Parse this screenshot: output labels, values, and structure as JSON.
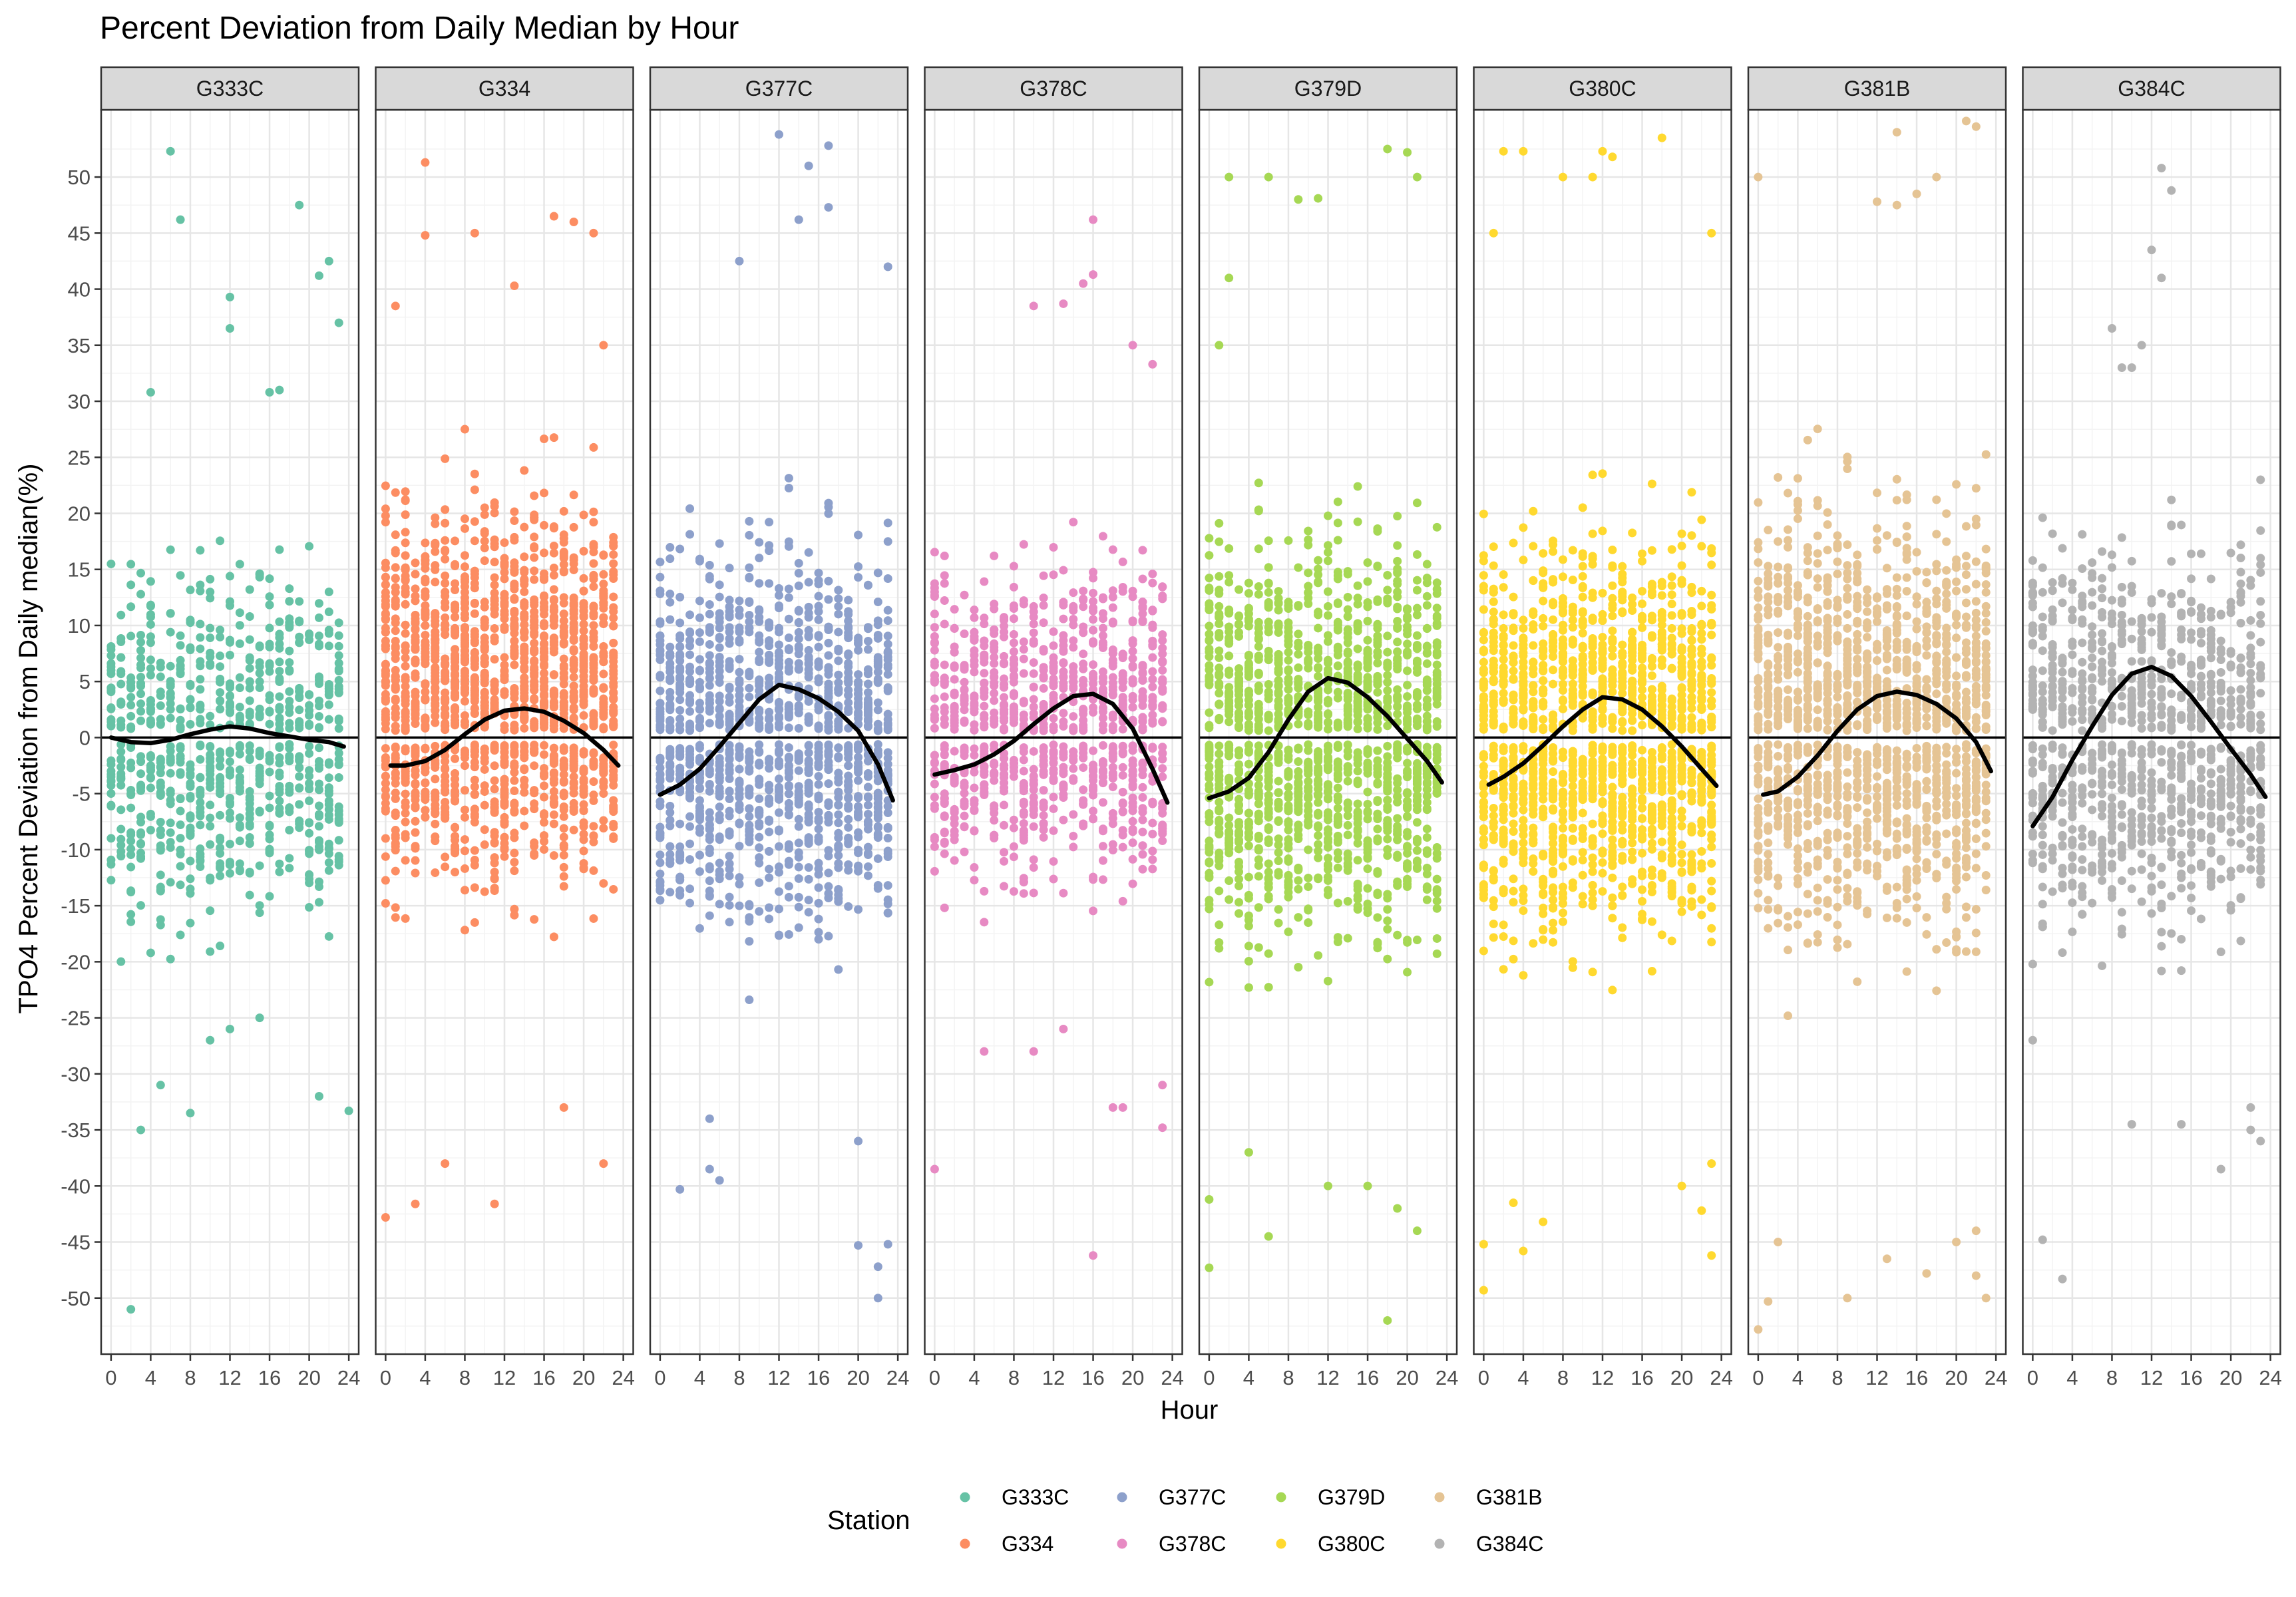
{
  "chart_data": {
    "type": "scatter",
    "title": "Percent Deviation from Daily Median by Hour",
    "xlabel": "Hour",
    "ylabel": "TPO4 Percent Deviation from Daily median(%)",
    "xlim": [
      -1,
      25
    ],
    "ylim": [
      -55,
      56
    ],
    "x_ticks": [
      0,
      4,
      8,
      12,
      16,
      20,
      24
    ],
    "y_ticks": [
      -50,
      -45,
      -40,
      -35,
      -30,
      -25,
      -20,
      -15,
      -10,
      -5,
      0,
      5,
      10,
      15,
      20,
      25,
      30,
      35,
      40,
      45,
      50
    ],
    "grid": true,
    "reference_line": 0,
    "legend": {
      "title": "Station",
      "position": "bottom",
      "entries": [
        "G333C",
        "G334",
        "G377C",
        "G378C",
        "G379D",
        "G380C",
        "G381B",
        "G384C"
      ]
    },
    "facets": [
      {
        "label": "G333C",
        "color": "#66C2A5",
        "pt_ymin": -27,
        "pt_ymax": 25,
        "density": 0.5,
        "outliers": [
          [
            6,
            52.3
          ],
          [
            7,
            46.2
          ],
          [
            12,
            39.3
          ],
          [
            19,
            47.5
          ],
          [
            21,
            41.2
          ],
          [
            22,
            42.5
          ],
          [
            23,
            37
          ],
          [
            3,
            -35
          ],
          [
            2,
            -51
          ],
          [
            4,
            30.8
          ],
          [
            12,
            36.5
          ],
          [
            16,
            30.8
          ],
          [
            17,
            31
          ],
          [
            10,
            -27
          ],
          [
            8,
            -33.5
          ],
          [
            21,
            -32
          ],
          [
            24,
            -33.3
          ],
          [
            5,
            -31
          ],
          [
            12,
            -26
          ],
          [
            15,
            -25
          ]
        ],
        "trend": [
          [
            0,
            0
          ],
          [
            2,
            -0.4
          ],
          [
            4,
            -0.5
          ],
          [
            6,
            -0.2
          ],
          [
            8,
            0.3
          ],
          [
            10,
            0.7
          ],
          [
            12,
            1.0
          ],
          [
            14,
            0.8
          ],
          [
            16,
            0.4
          ],
          [
            18,
            0.1
          ],
          [
            20,
            -0.2
          ],
          [
            22,
            -0.4
          ],
          [
            23.5,
            -0.8
          ]
        ]
      },
      {
        "label": "G334",
        "color": "#FC8D62",
        "pt_ymin": -25,
        "pt_ymax": 33,
        "density": 1.0,
        "outliers": [
          [
            4,
            51.3
          ],
          [
            4,
            44.8
          ],
          [
            9,
            45
          ],
          [
            13,
            40.3
          ],
          [
            17,
            46.5
          ],
          [
            19,
            46
          ],
          [
            21,
            45
          ],
          [
            0,
            -42.8
          ],
          [
            11,
            -41.6
          ],
          [
            3,
            -41.6
          ],
          [
            6,
            -38
          ],
          [
            22,
            -38
          ],
          [
            18,
            -33
          ],
          [
            1,
            38.5
          ],
          [
            22,
            35
          ]
        ],
        "trend": [
          [
            0.5,
            -2.5
          ],
          [
            2,
            -2.5
          ],
          [
            4,
            -2.1
          ],
          [
            6,
            -1.1
          ],
          [
            8,
            0.3
          ],
          [
            10,
            1.6
          ],
          [
            12,
            2.4
          ],
          [
            14,
            2.6
          ],
          [
            16,
            2.3
          ],
          [
            18,
            1.5
          ],
          [
            20,
            0.4
          ],
          [
            22,
            -1.1
          ],
          [
            23.5,
            -2.5
          ]
        ]
      },
      {
        "label": "G377C",
        "color": "#8DA0CB",
        "pt_ymin": -28,
        "pt_ymax": 28,
        "density": 0.8,
        "outliers": [
          [
            12,
            53.8
          ],
          [
            15,
            51
          ],
          [
            17,
            52.8
          ],
          [
            14,
            46.2
          ],
          [
            17,
            47.3
          ],
          [
            8,
            42.5
          ],
          [
            23,
            42
          ],
          [
            2,
            -40.3
          ],
          [
            5,
            -38.5
          ],
          [
            6,
            -39.5
          ],
          [
            20,
            -45.3
          ],
          [
            23,
            -45.2
          ],
          [
            22,
            -47.2
          ],
          [
            22,
            -50
          ],
          [
            5,
            -34
          ],
          [
            20,
            -36
          ]
        ],
        "trend": [
          [
            0,
            -5.1
          ],
          [
            2,
            -4.2
          ],
          [
            4,
            -2.8
          ],
          [
            6,
            -0.8
          ],
          [
            8,
            1.3
          ],
          [
            10,
            3.4
          ],
          [
            12,
            4.7
          ],
          [
            14,
            4.3
          ],
          [
            16,
            3.5
          ],
          [
            18,
            2.3
          ],
          [
            20,
            0.6
          ],
          [
            22,
            -2.4
          ],
          [
            23.5,
            -5.6
          ]
        ]
      },
      {
        "label": "G378C",
        "color": "#E78AC3",
        "pt_ymin": -22,
        "pt_ymax": 25,
        "density": 0.6,
        "outliers": [
          [
            16,
            46.2
          ],
          [
            15,
            40.5
          ],
          [
            16,
            41.3
          ],
          [
            10,
            38.5
          ],
          [
            13,
            38.7
          ],
          [
            20,
            35
          ],
          [
            22,
            33.3
          ],
          [
            0,
            -38.5
          ],
          [
            16,
            -46.2
          ],
          [
            5,
            -28
          ],
          [
            10,
            -28
          ],
          [
            13,
            -26
          ],
          [
            18,
            -33
          ],
          [
            19,
            -33
          ],
          [
            23,
            -34.8
          ],
          [
            23,
            -31
          ]
        ],
        "trend": [
          [
            0,
            -3.3
          ],
          [
            2,
            -2.9
          ],
          [
            4,
            -2.4
          ],
          [
            6,
            -1.5
          ],
          [
            8,
            -0.3
          ],
          [
            10,
            1.2
          ],
          [
            12,
            2.6
          ],
          [
            14,
            3.7
          ],
          [
            16,
            3.9
          ],
          [
            18,
            3.0
          ],
          [
            20,
            0.8
          ],
          [
            22,
            -2.8
          ],
          [
            23.5,
            -5.8
          ]
        ]
      },
      {
        "label": "G379D",
        "color": "#A6D854",
        "pt_ymin": -30,
        "pt_ymax": 30,
        "density": 0.9,
        "outliers": [
          [
            2,
            50
          ],
          [
            6,
            50
          ],
          [
            9,
            48
          ],
          [
            11,
            48.1
          ],
          [
            18,
            52.5
          ],
          [
            20,
            52.2
          ],
          [
            21,
            50
          ],
          [
            1,
            35
          ],
          [
            2,
            41
          ],
          [
            0,
            -47.3
          ],
          [
            0,
            -41.2
          ],
          [
            6,
            -44.5
          ],
          [
            18,
            -52
          ],
          [
            21,
            -44
          ],
          [
            16,
            -40
          ],
          [
            19,
            -42
          ],
          [
            12,
            -40
          ],
          [
            4,
            -37
          ]
        ],
        "trend": [
          [
            0,
            -5.4
          ],
          [
            2,
            -4.8
          ],
          [
            4,
            -3.6
          ],
          [
            6,
            -1.3
          ],
          [
            8,
            1.6
          ],
          [
            10,
            4.1
          ],
          [
            12,
            5.3
          ],
          [
            14,
            4.9
          ],
          [
            16,
            3.6
          ],
          [
            18,
            1.9
          ],
          [
            20,
            -0.1
          ],
          [
            22,
            -2.1
          ],
          [
            23.5,
            -4.0
          ]
        ]
      },
      {
        "label": "G380C",
        "color": "#FFD92F",
        "pt_ymin": -30,
        "pt_ymax": 30,
        "density": 1.0,
        "outliers": [
          [
            2,
            52.3
          ],
          [
            4,
            52.3
          ],
          [
            12,
            52.3
          ],
          [
            13,
            51.8
          ],
          [
            18,
            53.5
          ],
          [
            8,
            50
          ],
          [
            11,
            50
          ],
          [
            1,
            45
          ],
          [
            23,
            45
          ],
          [
            0,
            -49.3
          ],
          [
            0,
            -45.2
          ],
          [
            4,
            -45.8
          ],
          [
            6,
            -43.2
          ],
          [
            3,
            -41.5
          ],
          [
            23,
            -46.2
          ],
          [
            22,
            -42.2
          ],
          [
            20,
            -40
          ],
          [
            23,
            -38
          ]
        ],
        "trend": [
          [
            0.5,
            -4.2
          ],
          [
            2,
            -3.5
          ],
          [
            4,
            -2.3
          ],
          [
            6,
            -0.7
          ],
          [
            8,
            1.0
          ],
          [
            10,
            2.5
          ],
          [
            12,
            3.6
          ],
          [
            14,
            3.4
          ],
          [
            16,
            2.5
          ],
          [
            18,
            1.0
          ],
          [
            20,
            -0.8
          ],
          [
            22,
            -2.8
          ],
          [
            23.5,
            -4.3
          ]
        ]
      },
      {
        "label": "G381B",
        "color": "#E5C494",
        "pt_ymin": -30,
        "pt_ymax": 33,
        "density": 1.0,
        "outliers": [
          [
            0,
            50
          ],
          [
            12,
            47.8
          ],
          [
            14,
            47.5
          ],
          [
            16,
            48.5
          ],
          [
            18,
            50
          ],
          [
            21,
            55
          ],
          [
            22,
            54.5
          ],
          [
            14,
            54
          ],
          [
            0,
            -52.8
          ],
          [
            1,
            -50.3
          ],
          [
            9,
            -50
          ],
          [
            17,
            -47.8
          ],
          [
            13,
            -46.5
          ],
          [
            22,
            -48
          ],
          [
            23,
            -50
          ],
          [
            2,
            -45
          ],
          [
            20,
            -45
          ],
          [
            22,
            -44
          ]
        ],
        "trend": [
          [
            0.5,
            -5.1
          ],
          [
            2,
            -4.8
          ],
          [
            4,
            -3.5
          ],
          [
            6,
            -1.6
          ],
          [
            8,
            0.6
          ],
          [
            10,
            2.5
          ],
          [
            12,
            3.7
          ],
          [
            14,
            4.1
          ],
          [
            16,
            3.8
          ],
          [
            18,
            3.0
          ],
          [
            20,
            1.7
          ],
          [
            22,
            -0.4
          ],
          [
            23.5,
            -3.0
          ]
        ]
      },
      {
        "label": "G384C",
        "color": "#B3B3B3",
        "pt_ymin": -28,
        "pt_ymax": 28,
        "density": 0.7,
        "outliers": [
          [
            12,
            43.5
          ],
          [
            13,
            50.8
          ],
          [
            14,
            48.8
          ],
          [
            13,
            41
          ],
          [
            8,
            36.5
          ],
          [
            9,
            33
          ],
          [
            10,
            33
          ],
          [
            11,
            35
          ],
          [
            1,
            -44.8
          ],
          [
            3,
            -48.3
          ],
          [
            19,
            -38.5
          ],
          [
            10,
            -34.5
          ],
          [
            15,
            -34.5
          ],
          [
            22,
            -35
          ],
          [
            23,
            -36
          ],
          [
            22,
            -33
          ],
          [
            0,
            -27
          ],
          [
            23,
            23
          ]
        ],
        "trend": [
          [
            0,
            -7.9
          ],
          [
            2,
            -5.3
          ],
          [
            4,
            -2.0
          ],
          [
            6,
            1.0
          ],
          [
            8,
            3.8
          ],
          [
            10,
            5.7
          ],
          [
            12,
            6.3
          ],
          [
            14,
            5.5
          ],
          [
            16,
            3.7
          ],
          [
            18,
            1.4
          ],
          [
            20,
            -1.0
          ],
          [
            22,
            -3.3
          ],
          [
            23.5,
            -5.3
          ]
        ]
      }
    ]
  }
}
